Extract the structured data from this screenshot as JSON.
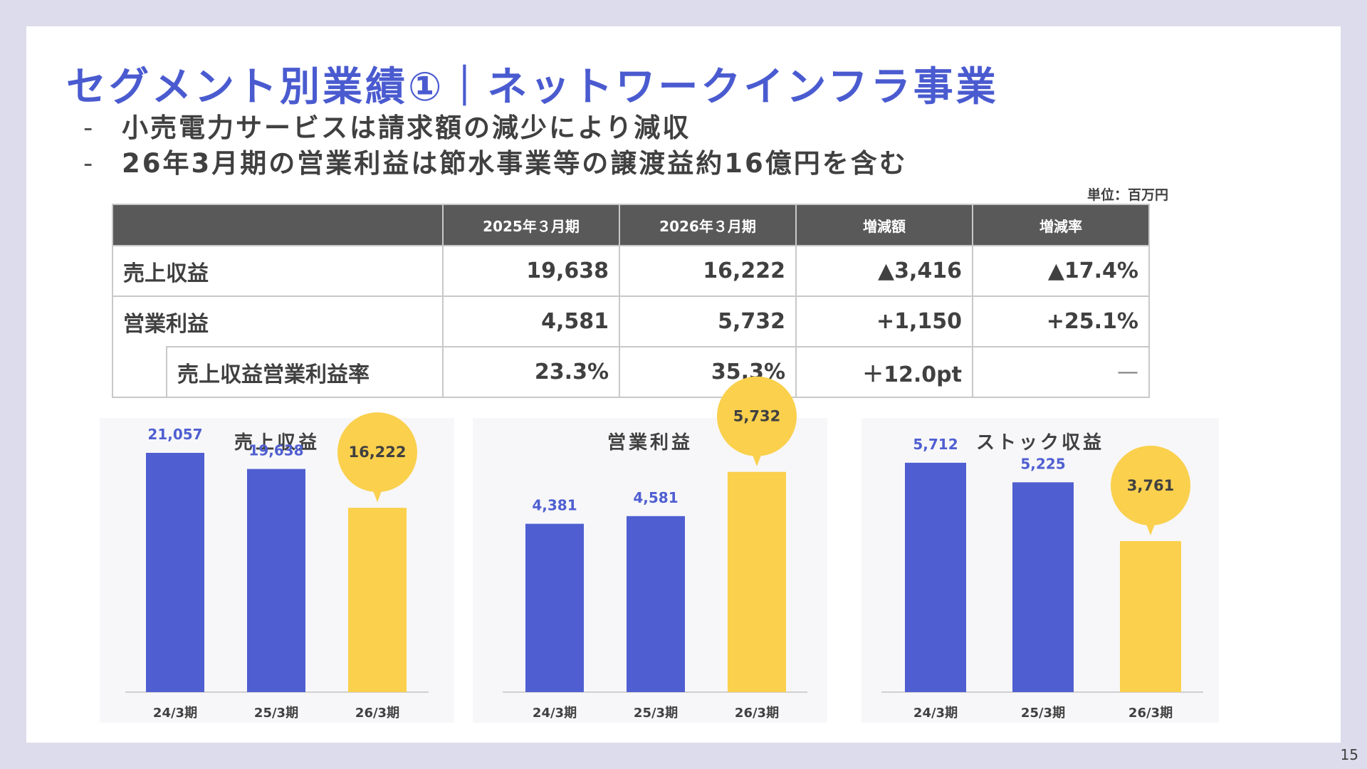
{
  "title": "セグメント別業績①｜ネットワークインフラ事業",
  "bullets": [
    "小売電力サービスは請求額の減少により減収",
    "26年3月期の営業利益は節水事業等の譲渡益約16億円を含む"
  ],
  "bullet_marker": "-",
  "unit": "単位：百万円",
  "table": {
    "headers": [
      "",
      "2025年３月期",
      "2026年３月期",
      "増減額",
      "増減率"
    ],
    "rows": [
      {
        "label": "売上収益",
        "v1": "19,638",
        "v2": "16,222",
        "diff": "▲3,416",
        "rate": "▲17.4%"
      },
      {
        "label": "営業利益",
        "v1": "4,581",
        "v2": "5,732",
        "diff": "+1,150",
        "rate": "+25.1%"
      },
      {
        "label": "売上収益営業利益率",
        "v1": "23.3%",
        "v2": "35.3%",
        "diff": "＋12.0pt",
        "rate": "—"
      }
    ]
  },
  "colors": {
    "accent": "#4a5bd0",
    "bar_past": "#4f5fd1",
    "bar_current": "#fad04d",
    "header_bg": "#595959"
  },
  "chart_data": [
    {
      "type": "bar",
      "title": "売上収益",
      "categories": [
        "24/3期",
        "25/3期",
        "26/3期"
      ],
      "values": [
        21057,
        19638,
        16222
      ],
      "labels": [
        "21,057",
        "19,638",
        "16,222"
      ],
      "highlight_index": 2,
      "ylim": [
        0,
        23500
      ]
    },
    {
      "type": "bar",
      "title": "営業利益",
      "categories": [
        "24/3期",
        "25/3期",
        "26/3期"
      ],
      "values": [
        4381,
        4581,
        5732
      ],
      "labels": [
        "4,381",
        "4,581",
        "5,732"
      ],
      "highlight_index": 2,
      "ylim": [
        0,
        6950
      ]
    },
    {
      "type": "bar",
      "title": "ストック収益",
      "categories": [
        "24/3期",
        "25/3期",
        "26/3期"
      ],
      "values": [
        5712,
        5225,
        3761
      ],
      "labels": [
        "5,712",
        "5,225",
        "3,761"
      ],
      "highlight_index": 2,
      "ylim": [
        0,
        6650
      ]
    }
  ],
  "page_number": "15"
}
